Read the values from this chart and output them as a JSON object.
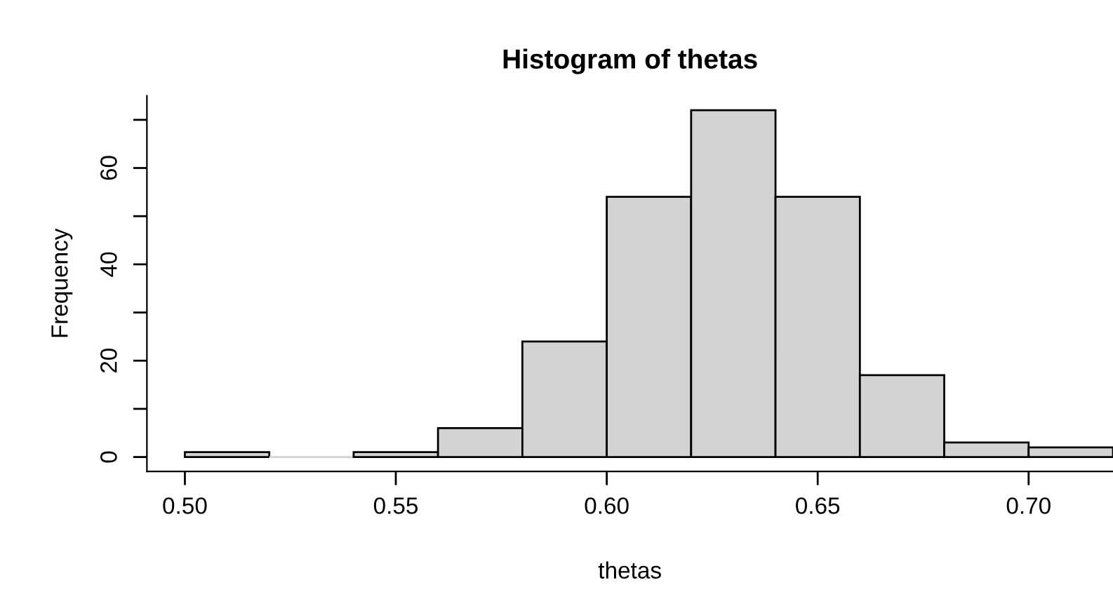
{
  "chart_data": {
    "type": "histogram",
    "title": "Histogram of thetas",
    "xlabel": "thetas",
    "ylabel": "Frequency",
    "bins": [
      0.5,
      0.52,
      0.54,
      0.56,
      0.58,
      0.6,
      0.62,
      0.64,
      0.66,
      0.68,
      0.7,
      0.72
    ],
    "values": [
      1,
      0,
      1,
      6,
      24,
      54,
      72,
      54,
      17,
      3,
      2
    ],
    "color": "#d3d3d3",
    "xlim": [
      0.491,
      0.72
    ],
    "ylim": [
      -3,
      75
    ],
    "xticks": [
      {
        "value": 0.5,
        "label": "0.50"
      },
      {
        "value": 0.55,
        "label": "0.55"
      },
      {
        "value": 0.6,
        "label": "0.60"
      },
      {
        "value": 0.65,
        "label": "0.65"
      },
      {
        "value": 0.7,
        "label": "0.70"
      }
    ],
    "yticks": [
      0,
      {
        "value": 10,
        "label": null
      },
      20,
      {
        "value": 30,
        "label": null
      },
      40,
      {
        "value": 50,
        "label": null
      },
      60,
      {
        "value": 70,
        "label": null
      }
    ],
    "grid": false,
    "legend": false
  }
}
